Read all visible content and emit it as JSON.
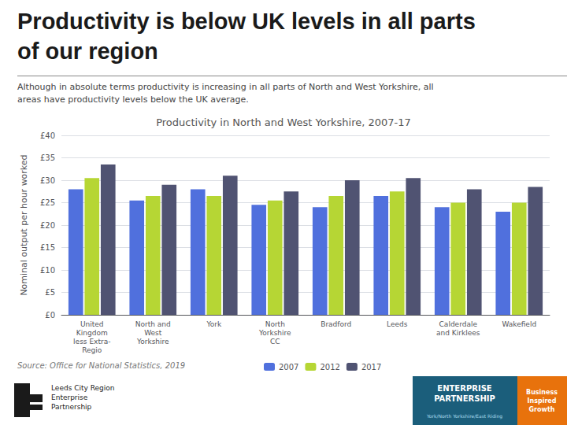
{
  "chart_data": {
    "type": "bar",
    "title": "Productivity in North and West Yorkshire, 2007-17",
    "subtitle": "Although in absolute terms productivity is increasing in all parts of North and West Yorkshire, all\nareas have productivity levels below the UK average.",
    "annotations": [
      "Productivity is below UK levels in all parts",
      "of our region",
      "Source: Office for National Statistics, 2019",
      "Leeds City Region\nEnterprise\nPartnership",
      "ENTERPRISE\nPARTNERSHIP",
      "York/North Yorkshire/East Riding",
      "Business\nInspired\nGrowth"
    ],
    "ylabel": "Nominal output per hour worked",
    "categories": [
      "United\nKingdom\nless Extra-\nRegio",
      "North and\nWest\nYorkshire",
      "York",
      "North\nYorkshire\nCC",
      "Bradford",
      "Leeds",
      "Calderdale\nand Kirklees",
      "Wakefield"
    ],
    "series": [
      {
        "name": "2007",
        "values": [
          28.0,
          25.5,
          28.0,
          24.5,
          24.0,
          26.5,
          24.0,
          23.0
        ]
      },
      {
        "name": "2012",
        "values": [
          30.5,
          26.5,
          26.5,
          25.5,
          26.5,
          27.5,
          25.0,
          25.0
        ]
      },
      {
        "name": "2017",
        "values": [
          33.5,
          29.0,
          31.0,
          27.5,
          30.0,
          30.5,
          28.0,
          28.5
        ]
      }
    ],
    "ylim": [
      0,
      40
    ],
    "yticks": [
      {
        "value": 0,
        "label": "£0"
      },
      {
        "value": 5,
        "label": "£5"
      },
      {
        "value": 10,
        "label": "£10"
      },
      {
        "value": 15,
        "label": "£15"
      },
      {
        "value": 20,
        "label": "£20"
      },
      {
        "value": 25,
        "label": "£25"
      },
      {
        "value": 30,
        "label": "£30"
      },
      {
        "value": 35,
        "label": "£35"
      },
      {
        "value": 40,
        "label": "£40"
      }
    ],
    "grid": true,
    "legend": "bottom"
  }
}
